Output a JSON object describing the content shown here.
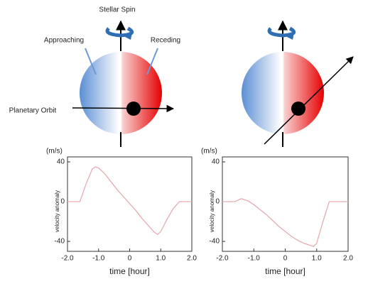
{
  "diagram": {
    "spin_label": "Stellar Spin",
    "approaching_label": "Approaching",
    "receding_label": "Receding",
    "orbit_label": "Planetary Orbit"
  },
  "chart_data": [
    {
      "type": "line",
      "unit_label": "(m/s)",
      "ylabel": "velocity anomaly",
      "xlabel": "time [hour]",
      "x": [
        -2,
        -1.6,
        -1.4,
        -1.2,
        -1.1,
        -1.0,
        -0.8,
        -0.6,
        -0.4,
        -0.2,
        0,
        0.2,
        0.4,
        0.6,
        0.8,
        0.9,
        1.0,
        1.2,
        1.4,
        1.6,
        2
      ],
      "values": [
        0,
        0,
        18,
        33,
        35,
        34,
        28,
        20,
        12,
        5,
        -2,
        -9,
        -17,
        -24,
        -31,
        -33,
        -30,
        -18,
        -7,
        0,
        0
      ],
      "color": "#e6aab0",
      "xlim": [
        -2,
        2
      ],
      "xticks": [
        {
          "value": -2,
          "label": "-2.0"
        },
        {
          "value": -1,
          "label": "-1.0"
        },
        0,
        {
          "value": 1,
          "label": "1.0"
        },
        {
          "value": 2,
          "label": "2.0"
        }
      ],
      "ylim": [
        -50,
        45
      ],
      "yticks": [
        40,
        0,
        -40
      ]
    },
    {
      "type": "line",
      "unit_label": "(m/s)",
      "ylabel": "velocity anomaly",
      "xlabel": "time [hour]",
      "x": [
        -2,
        -1.6,
        -1.4,
        -1.2,
        -1.0,
        -0.8,
        -0.6,
        -0.4,
        -0.2,
        0,
        0.2,
        0.4,
        0.6,
        0.8,
        0.9,
        1.0,
        1.2,
        1.4,
        2
      ],
      "values": [
        0,
        0,
        3,
        1,
        -3,
        -8,
        -13,
        -19,
        -25,
        -30,
        -35,
        -39,
        -42,
        -44,
        -45,
        -42,
        -20,
        0,
        0
      ],
      "color": "#e6aab0",
      "xlim": [
        -2,
        2
      ],
      "xticks": [
        {
          "value": -2,
          "label": "-2.0"
        },
        {
          "value": -1,
          "label": "-1.0"
        },
        0,
        {
          "value": 1,
          "label": "1.0"
        },
        {
          "value": 2,
          "label": "2.0"
        }
      ],
      "ylim": [
        -50,
        45
      ],
      "yticks": [
        40,
        0,
        -40
      ]
    }
  ]
}
